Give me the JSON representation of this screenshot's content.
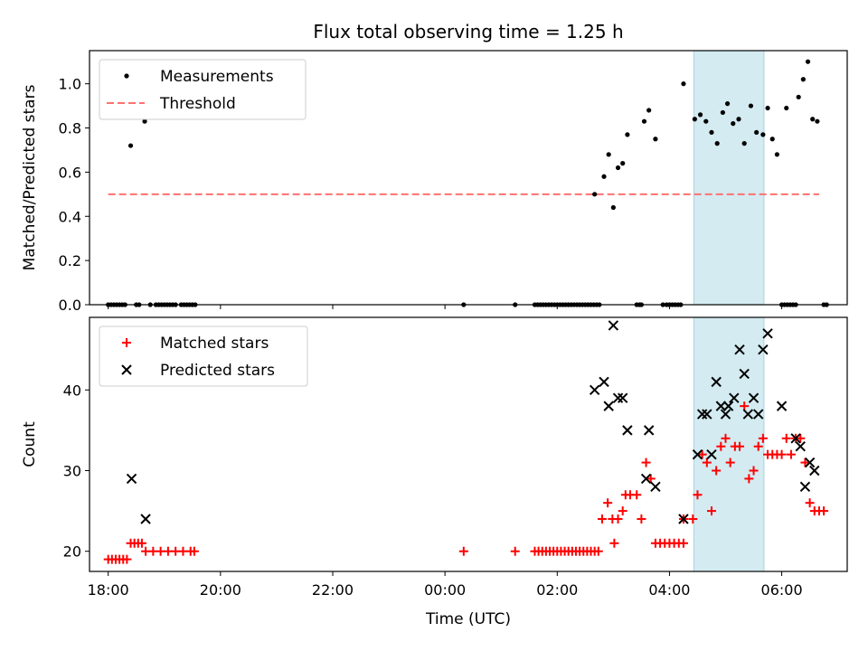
{
  "chart_data": {
    "title": "Flux total observing time = 1.25 h",
    "xlabel": "Time (UTC)",
    "xlim": [
      "17:40",
      "07:10"
    ],
    "x_ticks": [
      "18:00",
      "20:00",
      "22:00",
      "00:00",
      "02:00",
      "04:00",
      "06:00"
    ],
    "highlight_span": {
      "from": "04:26",
      "to": "05:41",
      "color": "#d3ebf1"
    },
    "panels": [
      {
        "name": "ratio",
        "type": "scatter",
        "ylabel": "Matched/Predicted stars",
        "ylim": [
          0.0,
          1.15
        ],
        "y_ticks": [
          "0.0",
          "0.2",
          "0.4",
          "0.6",
          "0.8",
          "1.0"
        ],
        "legend_position": "upper-left",
        "legend": [
          "Measurements",
          "Threshold"
        ],
        "threshold": {
          "value": 0.5,
          "x_from": "18:00",
          "x_to": "06:40",
          "color": "#ff7070"
        },
        "series": [
          {
            "name": "Measurements",
            "marker": "dot",
            "color": "#000000",
            "points": [
              [
                "18:00",
                0.0
              ],
              [
                "18:03",
                0.0
              ],
              [
                "18:06",
                0.0
              ],
              [
                "18:09",
                0.0
              ],
              [
                "18:12",
                0.0
              ],
              [
                "18:15",
                0.0
              ],
              [
                "18:18",
                0.0
              ],
              [
                "18:24",
                0.72
              ],
              [
                "18:30",
                0.0
              ],
              [
                "18:33",
                0.0
              ],
              [
                "18:39",
                0.83
              ],
              [
                "18:45",
                0.0
              ],
              [
                "18:51",
                0.0
              ],
              [
                "18:54",
                0.0
              ],
              [
                "18:57",
                0.0
              ],
              [
                "19:00",
                0.0
              ],
              [
                "19:03",
                0.0
              ],
              [
                "19:06",
                0.0
              ],
              [
                "19:09",
                0.0
              ],
              [
                "19:12",
                0.0
              ],
              [
                "19:18",
                0.0
              ],
              [
                "19:21",
                0.0
              ],
              [
                "19:24",
                0.0
              ],
              [
                "19:27",
                0.0
              ],
              [
                "19:30",
                0.0
              ],
              [
                "19:33",
                0.0
              ],
              [
                "00:20",
                0.0
              ],
              [
                "01:15",
                0.0
              ],
              [
                "01:36",
                0.0
              ],
              [
                "01:39",
                0.0
              ],
              [
                "01:42",
                0.0
              ],
              [
                "01:45",
                0.0
              ],
              [
                "01:48",
                0.0
              ],
              [
                "01:51",
                0.0
              ],
              [
                "01:54",
                0.0
              ],
              [
                "01:57",
                0.0
              ],
              [
                "02:00",
                0.0
              ],
              [
                "02:03",
                0.0
              ],
              [
                "02:06",
                0.0
              ],
              [
                "02:09",
                0.0
              ],
              [
                "02:12",
                0.0
              ],
              [
                "02:15",
                0.0
              ],
              [
                "02:18",
                0.0
              ],
              [
                "02:21",
                0.0
              ],
              [
                "02:24",
                0.0
              ],
              [
                "02:27",
                0.0
              ],
              [
                "02:30",
                0.0
              ],
              [
                "02:33",
                0.0
              ],
              [
                "02:36",
                0.0
              ],
              [
                "02:39",
                0.0
              ],
              [
                "02:42",
                0.0
              ],
              [
                "02:45",
                0.0
              ],
              [
                "02:40",
                0.5
              ],
              [
                "02:50",
                0.58
              ],
              [
                "02:55",
                0.68
              ],
              [
                "03:00",
                0.44
              ],
              [
                "03:05",
                0.62
              ],
              [
                "03:10",
                0.64
              ],
              [
                "03:15",
                0.77
              ],
              [
                "03:25",
                0.0
              ],
              [
                "03:28",
                0.0
              ],
              [
                "03:30",
                0.0
              ],
              [
                "03:33",
                0.83
              ],
              [
                "03:38",
                0.88
              ],
              [
                "03:45",
                0.75
              ],
              [
                "03:53",
                0.0
              ],
              [
                "03:57",
                0.0
              ],
              [
                "04:00",
                0.0
              ],
              [
                "04:03",
                0.0
              ],
              [
                "04:06",
                0.0
              ],
              [
                "04:09",
                0.0
              ],
              [
                "04:12",
                0.0
              ],
              [
                "04:15",
                1.0
              ],
              [
                "04:27",
                0.84
              ],
              [
                "04:33",
                0.86
              ],
              [
                "04:39",
                0.83
              ],
              [
                "04:45",
                0.78
              ],
              [
                "04:51",
                0.73
              ],
              [
                "04:57",
                0.87
              ],
              [
                "05:02",
                0.91
              ],
              [
                "05:08",
                0.82
              ],
              [
                "05:14",
                0.84
              ],
              [
                "05:20",
                0.73
              ],
              [
                "05:27",
                0.9
              ],
              [
                "05:33",
                0.78
              ],
              [
                "05:40",
                0.77
              ],
              [
                "05:45",
                0.89
              ],
              [
                "05:50",
                0.75
              ],
              [
                "05:55",
                0.68
              ],
              [
                "06:00",
                0.0
              ],
              [
                "06:03",
                0.0
              ],
              [
                "06:06",
                0.0
              ],
              [
                "06:09",
                0.0
              ],
              [
                "06:12",
                0.0
              ],
              [
                "06:15",
                0.0
              ],
              [
                "06:05",
                0.89
              ],
              [
                "06:18",
                0.94
              ],
              [
                "06:23",
                1.02
              ],
              [
                "06:28",
                1.1
              ],
              [
                "06:33",
                0.84
              ],
              [
                "06:38",
                0.83
              ],
              [
                "06:45",
                0.0
              ],
              [
                "06:48",
                0.0
              ]
            ]
          }
        ]
      },
      {
        "name": "count",
        "type": "scatter",
        "ylabel": "Count",
        "ylim": [
          17.5,
          49
        ],
        "y_ticks": [
          "20",
          "30",
          "40"
        ],
        "legend_position": "upper-left",
        "legend": [
          "Matched stars",
          "Predicted stars"
        ],
        "series": [
          {
            "name": "Matched stars",
            "marker": "plus",
            "color": "#ff0000",
            "points": [
              [
                "18:00",
                19
              ],
              [
                "18:04",
                19
              ],
              [
                "18:08",
                19
              ],
              [
                "18:12",
                19
              ],
              [
                "18:16",
                19
              ],
              [
                "18:20",
                19
              ],
              [
                "18:24",
                21
              ],
              [
                "18:28",
                21
              ],
              [
                "18:32",
                21
              ],
              [
                "18:36",
                21
              ],
              [
                "18:40",
                20
              ],
              [
                "18:48",
                20
              ],
              [
                "18:56",
                20
              ],
              [
                "19:04",
                20
              ],
              [
                "19:12",
                20
              ],
              [
                "19:20",
                20
              ],
              [
                "19:28",
                20
              ],
              [
                "19:32",
                20
              ],
              [
                "00:20",
                20
              ],
              [
                "01:15",
                20
              ],
              [
                "01:36",
                20
              ],
              [
                "01:40",
                20
              ],
              [
                "01:44",
                20
              ],
              [
                "01:48",
                20
              ],
              [
                "01:52",
                20
              ],
              [
                "01:56",
                20
              ],
              [
                "02:00",
                20
              ],
              [
                "02:04",
                20
              ],
              [
                "02:08",
                20
              ],
              [
                "02:12",
                20
              ],
              [
                "02:16",
                20
              ],
              [
                "02:20",
                20
              ],
              [
                "02:24",
                20
              ],
              [
                "02:28",
                20
              ],
              [
                "02:32",
                20
              ],
              [
                "02:36",
                20
              ],
              [
                "02:40",
                20
              ],
              [
                "02:44",
                20
              ],
              [
                "02:48",
                24
              ],
              [
                "02:54",
                26
              ],
              [
                "02:59",
                24
              ],
              [
                "03:01",
                21
              ],
              [
                "03:05",
                24
              ],
              [
                "03:10",
                25
              ],
              [
                "03:13",
                27
              ],
              [
                "03:18",
                27
              ],
              [
                "03:25",
                27
              ],
              [
                "03:30",
                24
              ],
              [
                "03:35",
                31
              ],
              [
                "03:40",
                29
              ],
              [
                "03:45",
                21
              ],
              [
                "03:50",
                21
              ],
              [
                "03:55",
                21
              ],
              [
                "04:00",
                21
              ],
              [
                "04:05",
                21
              ],
              [
                "04:10",
                21
              ],
              [
                "04:15",
                21
              ],
              [
                "04:15",
                24
              ],
              [
                "04:25",
                24
              ],
              [
                "04:30",
                27
              ],
              [
                "04:35",
                32
              ],
              [
                "04:40",
                31
              ],
              [
                "04:45",
                25
              ],
              [
                "04:50",
                30
              ],
              [
                "04:55",
                33
              ],
              [
                "05:00",
                34
              ],
              [
                "05:05",
                31
              ],
              [
                "05:10",
                33
              ],
              [
                "05:15",
                33
              ],
              [
                "05:20",
                38
              ],
              [
                "05:25",
                29
              ],
              [
                "05:30",
                30
              ],
              [
                "05:35",
                33
              ],
              [
                "05:40",
                34
              ],
              [
                "05:45",
                32
              ],
              [
                "05:50",
                32
              ],
              [
                "05:55",
                32
              ],
              [
                "06:00",
                32
              ],
              [
                "06:05",
                34
              ],
              [
                "06:10",
                32
              ],
              [
                "06:15",
                34
              ],
              [
                "06:20",
                34
              ],
              [
                "06:25",
                31
              ],
              [
                "06:30",
                26
              ],
              [
                "06:35",
                25
              ],
              [
                "06:40",
                25
              ],
              [
                "06:45",
                25
              ]
            ]
          },
          {
            "name": "Predicted stars",
            "marker": "x",
            "color": "#000000",
            "points": [
              [
                "18:25",
                29
              ],
              [
                "18:40",
                24
              ],
              [
                "02:40",
                40
              ],
              [
                "02:50",
                41
              ],
              [
                "02:55",
                38
              ],
              [
                "03:00",
                48
              ],
              [
                "03:05",
                39
              ],
              [
                "03:10",
                39
              ],
              [
                "03:15",
                35
              ],
              [
                "03:35",
                29
              ],
              [
                "03:38",
                35
              ],
              [
                "03:45",
                28
              ],
              [
                "04:15",
                24
              ],
              [
                "04:30",
                32
              ],
              [
                "04:35",
                37
              ],
              [
                "04:40",
                37
              ],
              [
                "04:45",
                32
              ],
              [
                "04:50",
                41
              ],
              [
                "04:55",
                38
              ],
              [
                "05:00",
                37
              ],
              [
                "05:03",
                38
              ],
              [
                "05:09",
                39
              ],
              [
                "05:15",
                45
              ],
              [
                "05:20",
                42
              ],
              [
                "05:24",
                37
              ],
              [
                "05:30",
                39
              ],
              [
                "05:35",
                37
              ],
              [
                "05:40",
                45
              ],
              [
                "05:45",
                47
              ],
              [
                "06:00",
                38
              ],
              [
                "06:15",
                34
              ],
              [
                "06:20",
                33
              ],
              [
                "06:25",
                28
              ],
              [
                "06:30",
                31
              ],
              [
                "06:35",
                30
              ]
            ]
          }
        ]
      }
    ]
  }
}
